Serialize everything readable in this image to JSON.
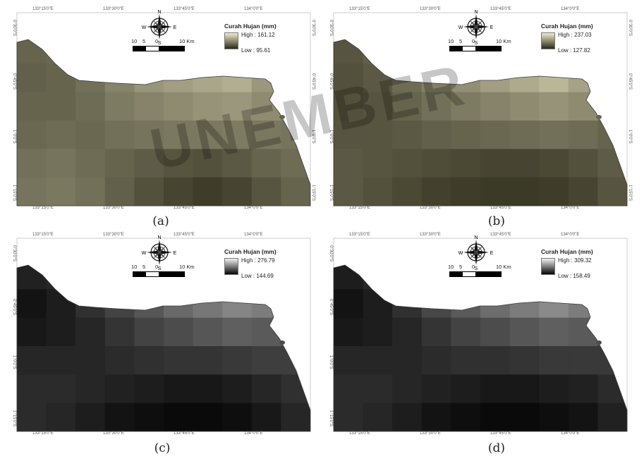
{
  "legend_title": "Curah Hujan (mm)",
  "compass": {
    "n": "N",
    "s": "S",
    "e": "E",
    "w": "W"
  },
  "scale": {
    "l10": "10",
    "l5": "5",
    "l0": "0",
    "r10": "10 Km"
  },
  "panels": [
    {
      "caption": "(a)",
      "high_label": "High : 161.12",
      "low_label": "Low : 95.61",
      "ramp_high": "#f1ecca",
      "ramp_low": "#2b2a18",
      "ticks_top": [
        "133°15'0\"E",
        "133°30'0\"E",
        "133°45'0\"E",
        "134°0'0\"E"
      ],
      "ticks_bottom": [
        "133°15'0\"E",
        "133°30'0\"E",
        "133°45'0\"E",
        "134°0'0\"E"
      ],
      "ticks_left": [
        "0°30'0\"S",
        "0°45'0\"S",
        "1°0'0\"S",
        "1°15'0\"S"
      ],
      "ticks_right": [
        "0°30'0\"S",
        "0°45'0\"S",
        "1°0'0\"S",
        "1°15'0\"S"
      ],
      "grid": [
        [
          0.3,
          0.32,
          0.4,
          0.55,
          0.62,
          0.7,
          0.74,
          0.72,
          0.6,
          0.45
        ],
        [
          0.28,
          0.3,
          0.36,
          0.46,
          0.55,
          0.6,
          0.64,
          0.68,
          0.56,
          0.4
        ],
        [
          0.3,
          0.3,
          0.34,
          0.42,
          0.46,
          0.5,
          0.54,
          0.56,
          0.5,
          0.4
        ],
        [
          0.32,
          0.34,
          0.32,
          0.36,
          0.38,
          0.4,
          0.4,
          0.42,
          0.4,
          0.38
        ],
        [
          0.36,
          0.38,
          0.34,
          0.3,
          0.26,
          0.22,
          0.2,
          0.24,
          0.3,
          0.34
        ],
        [
          0.38,
          0.4,
          0.36,
          0.28,
          0.2,
          0.14,
          0.1,
          0.14,
          0.22,
          0.3
        ]
      ]
    },
    {
      "caption": "(b)",
      "high_label": "High : 237.03",
      "low_label": "Low : 127.82",
      "ramp_high": "#f1ecca",
      "ramp_low": "#2b2a18",
      "ticks_top": [
        "133°15'0\"E",
        "133°30'0\"E",
        "133°45'0\"E",
        "134°0'0\"E"
      ],
      "ticks_bottom": [
        "133°15'0\"E",
        "133°30'0\"E",
        "133°45'0\"E",
        "134°0'0\"E"
      ],
      "ticks_left": [
        "0°30'0\"S",
        "0°45'0\"S",
        "1°0'0\"S",
        "1°15'0\"S"
      ],
      "ticks_right": [
        "0°30'0\"S",
        "0°45'0\"S",
        "1°0'0\"S",
        "1°15'0\"S"
      ],
      "grid": [
        [
          0.22,
          0.28,
          0.4,
          0.52,
          0.62,
          0.7,
          0.76,
          0.78,
          0.66,
          0.48
        ],
        [
          0.2,
          0.24,
          0.34,
          0.44,
          0.52,
          0.6,
          0.66,
          0.72,
          0.62,
          0.44
        ],
        [
          0.2,
          0.22,
          0.3,
          0.36,
          0.42,
          0.46,
          0.5,
          0.54,
          0.5,
          0.38
        ],
        [
          0.22,
          0.22,
          0.24,
          0.28,
          0.3,
          0.32,
          0.34,
          0.36,
          0.34,
          0.3
        ],
        [
          0.24,
          0.22,
          0.2,
          0.18,
          0.16,
          0.14,
          0.14,
          0.16,
          0.2,
          0.26
        ],
        [
          0.24,
          0.2,
          0.16,
          0.12,
          0.1,
          0.08,
          0.08,
          0.1,
          0.14,
          0.22
        ]
      ]
    },
    {
      "caption": "(c)",
      "high_label": "High : 276.79",
      "low_label": "Low : 144.69",
      "ramp_high": "#f2f2f2",
      "ramp_low": "#050505",
      "ticks_top": [
        "133°15'0\"E",
        "133°30'0\"E",
        "133°45'0\"E",
        "134°0'0\"E"
      ],
      "ticks_bottom": [
        "133°15'0\"E",
        "133°30'0\"E",
        "133°45'0\"E",
        "134°0'0\"E"
      ],
      "ticks_left": [
        "0°30'0\"S",
        "0°45'0\"S",
        "1°0'0\"S",
        "1°15'0\"S"
      ],
      "ticks_right": [],
      "grid": [
        [
          0.12,
          0.14,
          0.22,
          0.34,
          0.44,
          0.52,
          0.58,
          0.62,
          0.56,
          0.42
        ],
        [
          0.06,
          0.1,
          0.18,
          0.26,
          0.34,
          0.42,
          0.48,
          0.54,
          0.5,
          0.38
        ],
        [
          0.08,
          0.1,
          0.14,
          0.2,
          0.26,
          0.3,
          0.34,
          0.38,
          0.36,
          0.3
        ],
        [
          0.14,
          0.14,
          0.14,
          0.16,
          0.18,
          0.2,
          0.2,
          0.22,
          0.24,
          0.24
        ],
        [
          0.16,
          0.16,
          0.14,
          0.12,
          0.1,
          0.08,
          0.08,
          0.1,
          0.14,
          0.18
        ],
        [
          0.16,
          0.14,
          0.1,
          0.06,
          0.04,
          0.02,
          0.02,
          0.04,
          0.08,
          0.14
        ]
      ]
    },
    {
      "caption": "(d)",
      "high_label": "High : 309.32",
      "low_label": "Low : 158.49",
      "ramp_high": "#f2f2f2",
      "ramp_low": "#050505",
      "ticks_top": [
        "133°15'0\"E",
        "133°30'0\"E",
        "133°45'0\"E",
        "134°0'0\"E"
      ],
      "ticks_bottom": [
        "133°15'0\"E",
        "133°30'0\"E",
        "133°45'0\"E",
        "134°0'0\"E"
      ],
      "ticks_left": [
        "0°30'0\"S",
        "0°45'0\"S",
        "1°0'0\"S",
        "1°15'0\"S"
      ],
      "ticks_right": [],
      "grid": [
        [
          0.1,
          0.14,
          0.22,
          0.34,
          0.46,
          0.54,
          0.6,
          0.64,
          0.58,
          0.42
        ],
        [
          0.06,
          0.1,
          0.18,
          0.28,
          0.36,
          0.44,
          0.5,
          0.56,
          0.5,
          0.38
        ],
        [
          0.08,
          0.1,
          0.14,
          0.2,
          0.26,
          0.3,
          0.34,
          0.38,
          0.36,
          0.28
        ],
        [
          0.14,
          0.14,
          0.14,
          0.16,
          0.18,
          0.18,
          0.2,
          0.22,
          0.22,
          0.22
        ],
        [
          0.16,
          0.16,
          0.14,
          0.12,
          0.1,
          0.08,
          0.08,
          0.1,
          0.12,
          0.16
        ],
        [
          0.16,
          0.14,
          0.1,
          0.06,
          0.04,
          0.02,
          0.02,
          0.04,
          0.06,
          0.12
        ]
      ]
    }
  ],
  "watermark": "UNEMBER"
}
